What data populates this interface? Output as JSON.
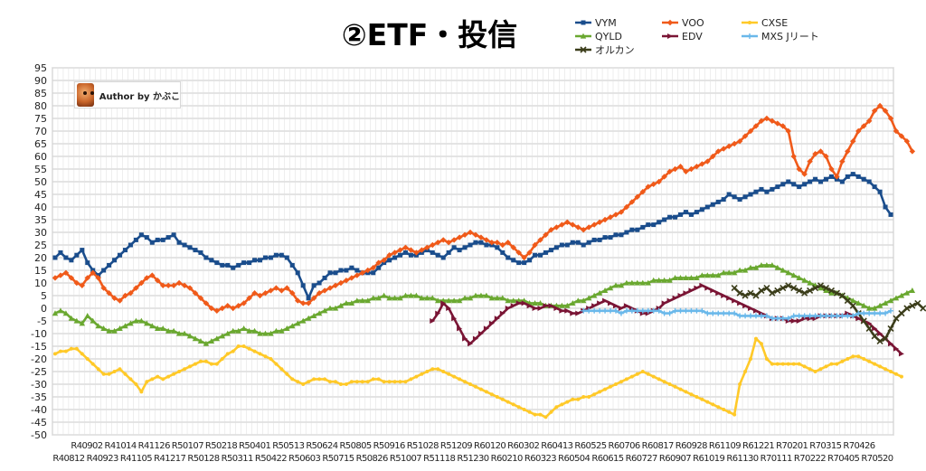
{
  "chart_data": {
    "type": "line",
    "title": "②ETF・投信",
    "author_badge": "Author by かぶこ",
    "ylim": [
      -50,
      95
    ],
    "ytick_step": 5,
    "grid": true,
    "legend_position": "top-right",
    "x_labels_top": [
      "R40902",
      "R41014",
      "R41126",
      "R50107",
      "R50218",
      "R50401",
      "R50513",
      "R50624",
      "R50805",
      "R50916",
      "R51028",
      "R51209",
      "R60120",
      "R60302",
      "R60413",
      "R60525",
      "R60706",
      "R60817",
      "R60928",
      "R61109",
      "R61221",
      "R70201",
      "R70315",
      "R70426"
    ],
    "x_labels_bottom": [
      "R40812",
      "R40923",
      "R41105",
      "R41217",
      "R50128",
      "R50311",
      "R50422",
      "R50603",
      "R50715",
      "R50826",
      "R51007",
      "R51118",
      "R51230",
      "R60210",
      "R60323",
      "R60504",
      "R60615",
      "R60727",
      "R60907",
      "R61019",
      "R61130",
      "R70111",
      "R70222",
      "R70405",
      "R70520"
    ],
    "n_points": 156,
    "series": [
      {
        "name": "VYM",
        "color": "#1a4d8c",
        "marker": "square",
        "start": 0,
        "values": [
          20,
          22,
          20,
          19,
          21,
          23,
          18,
          15,
          13,
          15,
          17,
          19,
          21,
          23,
          25,
          27,
          29,
          28,
          26,
          27,
          27,
          28,
          29,
          26,
          25,
          24,
          23,
          22,
          20,
          19,
          18,
          17,
          17,
          16,
          17,
          18,
          18,
          19,
          19,
          20,
          20,
          21,
          21,
          20,
          17,
          14,
          9,
          4,
          9,
          10,
          12,
          14,
          14,
          15,
          15,
          16,
          15,
          14,
          14,
          14,
          16,
          18,
          19,
          20,
          21,
          22,
          21,
          21,
          22,
          23,
          22,
          21,
          20,
          22,
          24,
          23,
          24,
          25,
          26,
          26,
          25,
          25,
          24,
          22,
          20,
          19,
          18,
          18,
          19,
          21,
          21,
          22,
          23,
          24,
          25,
          25,
          26,
          26,
          25,
          26,
          27,
          27,
          28,
          28,
          29,
          29,
          30,
          31,
          31,
          32,
          33,
          33,
          34,
          35,
          36,
          36,
          37,
          38,
          37,
          38,
          39,
          40,
          41,
          42,
          43,
          45,
          44,
          43,
          44,
          45,
          46,
          47,
          46,
          47,
          48,
          49,
          50,
          49,
          48,
          49,
          50,
          51,
          50,
          51,
          52,
          51,
          50,
          52,
          53,
          52,
          51,
          50,
          48,
          46,
          40,
          37
        ]
      },
      {
        "name": "VOO",
        "color": "#f05a1a",
        "marker": "diamond",
        "start": 0,
        "values": [
          12,
          13,
          14,
          12,
          10,
          9,
          12,
          14,
          12,
          8,
          6,
          4,
          3,
          5,
          6,
          8,
          10,
          12,
          13,
          11,
          9,
          9,
          9,
          10,
          9,
          8,
          6,
          4,
          2,
          0,
          -1,
          0,
          1,
          0,
          1,
          2,
          4,
          6,
          5,
          6,
          7,
          8,
          7,
          8,
          6,
          3,
          2,
          2,
          4,
          6,
          7,
          8,
          9,
          10,
          11,
          12,
          13,
          14,
          15,
          16,
          18,
          19,
          21,
          22,
          23,
          24,
          23,
          22,
          23,
          24,
          25,
          26,
          27,
          26,
          27,
          28,
          29,
          30,
          29,
          28,
          27,
          26,
          26,
          25,
          26,
          24,
          22,
          20,
          22,
          25,
          27,
          29,
          31,
          32,
          33,
          34,
          33,
          32,
          31,
          32,
          33,
          34,
          35,
          36,
          37,
          38,
          40,
          42,
          44,
          46,
          48,
          49,
          50,
          52,
          54,
          55,
          56,
          54,
          55,
          56,
          57,
          58,
          60,
          62,
          63,
          64,
          65,
          66,
          68,
          70,
          72,
          74,
          75,
          74,
          73,
          72,
          70,
          60,
          55,
          53,
          58,
          61,
          62,
          60,
          55,
          52,
          58,
          62,
          66,
          70,
          72,
          74,
          78,
          80,
          78,
          75,
          70,
          68,
          66,
          62
        ]
      },
      {
        "name": "QYLD",
        "color": "#6aa830",
        "marker": "triangle",
        "start": 0,
        "values": [
          -2,
          -1,
          -2,
          -4,
          -5,
          -6,
          -3,
          -5,
          -7,
          -8,
          -9,
          -9,
          -8,
          -7,
          -6,
          -5,
          -5,
          -6,
          -7,
          -8,
          -8,
          -9,
          -9,
          -10,
          -10,
          -11,
          -12,
          -13,
          -14,
          -13,
          -12,
          -11,
          -10,
          -9,
          -9,
          -8,
          -9,
          -9,
          -10,
          -10,
          -10,
          -9,
          -9,
          -8,
          -7,
          -6,
          -5,
          -4,
          -3,
          -2,
          -1,
          0,
          0,
          1,
          2,
          2,
          3,
          3,
          3,
          4,
          4,
          5,
          4,
          4,
          4,
          5,
          5,
          5,
          4,
          4,
          4,
          3,
          3,
          3,
          3,
          3,
          4,
          4,
          5,
          5,
          5,
          4,
          4,
          4,
          3,
          3,
          3,
          3,
          2,
          2,
          2,
          1,
          1,
          1,
          1,
          1,
          2,
          3,
          3,
          4,
          5,
          6,
          7,
          8,
          9,
          9,
          10,
          10,
          10,
          10,
          10,
          11,
          11,
          11,
          11,
          12,
          12,
          12,
          12,
          12,
          13,
          13,
          13,
          13,
          14,
          14,
          14,
          15,
          15,
          16,
          16,
          17,
          17,
          17,
          16,
          15,
          14,
          13,
          12,
          11,
          10,
          9,
          8,
          7,
          6,
          6,
          5,
          4,
          3,
          2,
          1,
          0,
          0,
          1,
          2,
          3,
          4,
          5,
          6,
          7
        ]
      },
      {
        "name": "EDV",
        "color": "#7a1535",
        "marker": "arrow",
        "start": 70,
        "values": [
          -5,
          -2,
          2,
          0,
          -4,
          -8,
          -12,
          -14,
          -12,
          -10,
          -8,
          -6,
          -4,
          -2,
          0,
          1,
          2,
          2,
          1,
          0,
          0,
          1,
          1,
          0,
          -1,
          -1,
          -2,
          -2,
          -1,
          0,
          1,
          2,
          3,
          2,
          1,
          0,
          1,
          0,
          -1,
          -2,
          -2,
          -1,
          0,
          2,
          3,
          4,
          5,
          6,
          7,
          8,
          9,
          8,
          7,
          6,
          5,
          4,
          3,
          2,
          1,
          0,
          -1,
          -2,
          -3,
          -4,
          -4,
          -4,
          -5,
          -5,
          -5,
          -4,
          -4,
          -4,
          -3,
          -3,
          -3,
          -3,
          -3,
          -2,
          -3,
          -4,
          -5,
          -6,
          -8,
          -10,
          -12,
          -14,
          -16,
          -18
        ]
      },
      {
        "name": "CXSE",
        "color": "#ffc928",
        "marker": "circle",
        "start": 0,
        "values": [
          -18,
          -17,
          -17,
          -16,
          -16,
          -18,
          -20,
          -22,
          -24,
          -26,
          -26,
          -25,
          -24,
          -26,
          -28,
          -30,
          -33,
          -29,
          -28,
          -27,
          -28,
          -27,
          -26,
          -25,
          -24,
          -23,
          -22,
          -21,
          -21,
          -22,
          -22,
          -20,
          -18,
          -17,
          -15,
          -15,
          -16,
          -17,
          -18,
          -19,
          -20,
          -22,
          -24,
          -26,
          -28,
          -29,
          -30,
          -29,
          -28,
          -28,
          -28,
          -29,
          -29,
          -30,
          -30,
          -29,
          -29,
          -29,
          -29,
          -28,
          -28,
          -29,
          -29,
          -29,
          -29,
          -29,
          -28,
          -27,
          -26,
          -25,
          -24,
          -24,
          -25,
          -26,
          -27,
          -28,
          -29,
          -30,
          -31,
          -32,
          -33,
          -34,
          -35,
          -36,
          -37,
          -38,
          -39,
          -40,
          -41,
          -42,
          -42,
          -43,
          -41,
          -39,
          -38,
          -37,
          -36,
          -36,
          -35,
          -35,
          -34,
          -33,
          -32,
          -31,
          -30,
          -29,
          -28,
          -27,
          -26,
          -25,
          -26,
          -27,
          -28,
          -29,
          -30,
          -31,
          -32,
          -33,
          -34,
          -35,
          -36,
          -37,
          -38,
          -39,
          -40,
          -41,
          -42,
          -30,
          -25,
          -20,
          -12,
          -14,
          -20,
          -22,
          -22,
          -22,
          -22,
          -22,
          -22,
          -23,
          -24,
          -25,
          -24,
          -23,
          -22,
          -22,
          -21,
          -20,
          -19,
          -19,
          -20,
          -21,
          -22,
          -23,
          -24,
          -25,
          -26,
          -27
        ]
      },
      {
        "name": "オルカン",
        "color": "#3b3d1a",
        "marker": "cross",
        "start": 126,
        "values": [
          8,
          6,
          5,
          6,
          5,
          7,
          8,
          6,
          7,
          8,
          9,
          8,
          7,
          6,
          7,
          8,
          9,
          8,
          7,
          6,
          5,
          3,
          1,
          -2,
          -5,
          -8,
          -11,
          -13,
          -12,
          -8,
          -4,
          -2,
          0,
          1,
          2,
          0
        ]
      },
      {
        "name": "MXS Jリート",
        "color": "#6ab8ea",
        "marker": "plus",
        "start": 98,
        "values": [
          -1,
          -1,
          -1,
          -1,
          -1,
          -1,
          -1,
          -2,
          -1,
          -1,
          -1,
          -1,
          -1,
          -1,
          -1,
          -2,
          -2,
          -1,
          -1,
          -1,
          -1,
          -1,
          -1,
          -2,
          -2,
          -2,
          -2,
          -2,
          -2,
          -3,
          -3,
          -3,
          -3,
          -3,
          -3,
          -4,
          -4,
          -4,
          -4,
          -3,
          -3,
          -3,
          -3,
          -3,
          -3,
          -3,
          -3,
          -3,
          -3,
          -3,
          -3,
          -2,
          -2,
          -2,
          -2,
          -2,
          -2,
          -1
        ]
      }
    ]
  }
}
